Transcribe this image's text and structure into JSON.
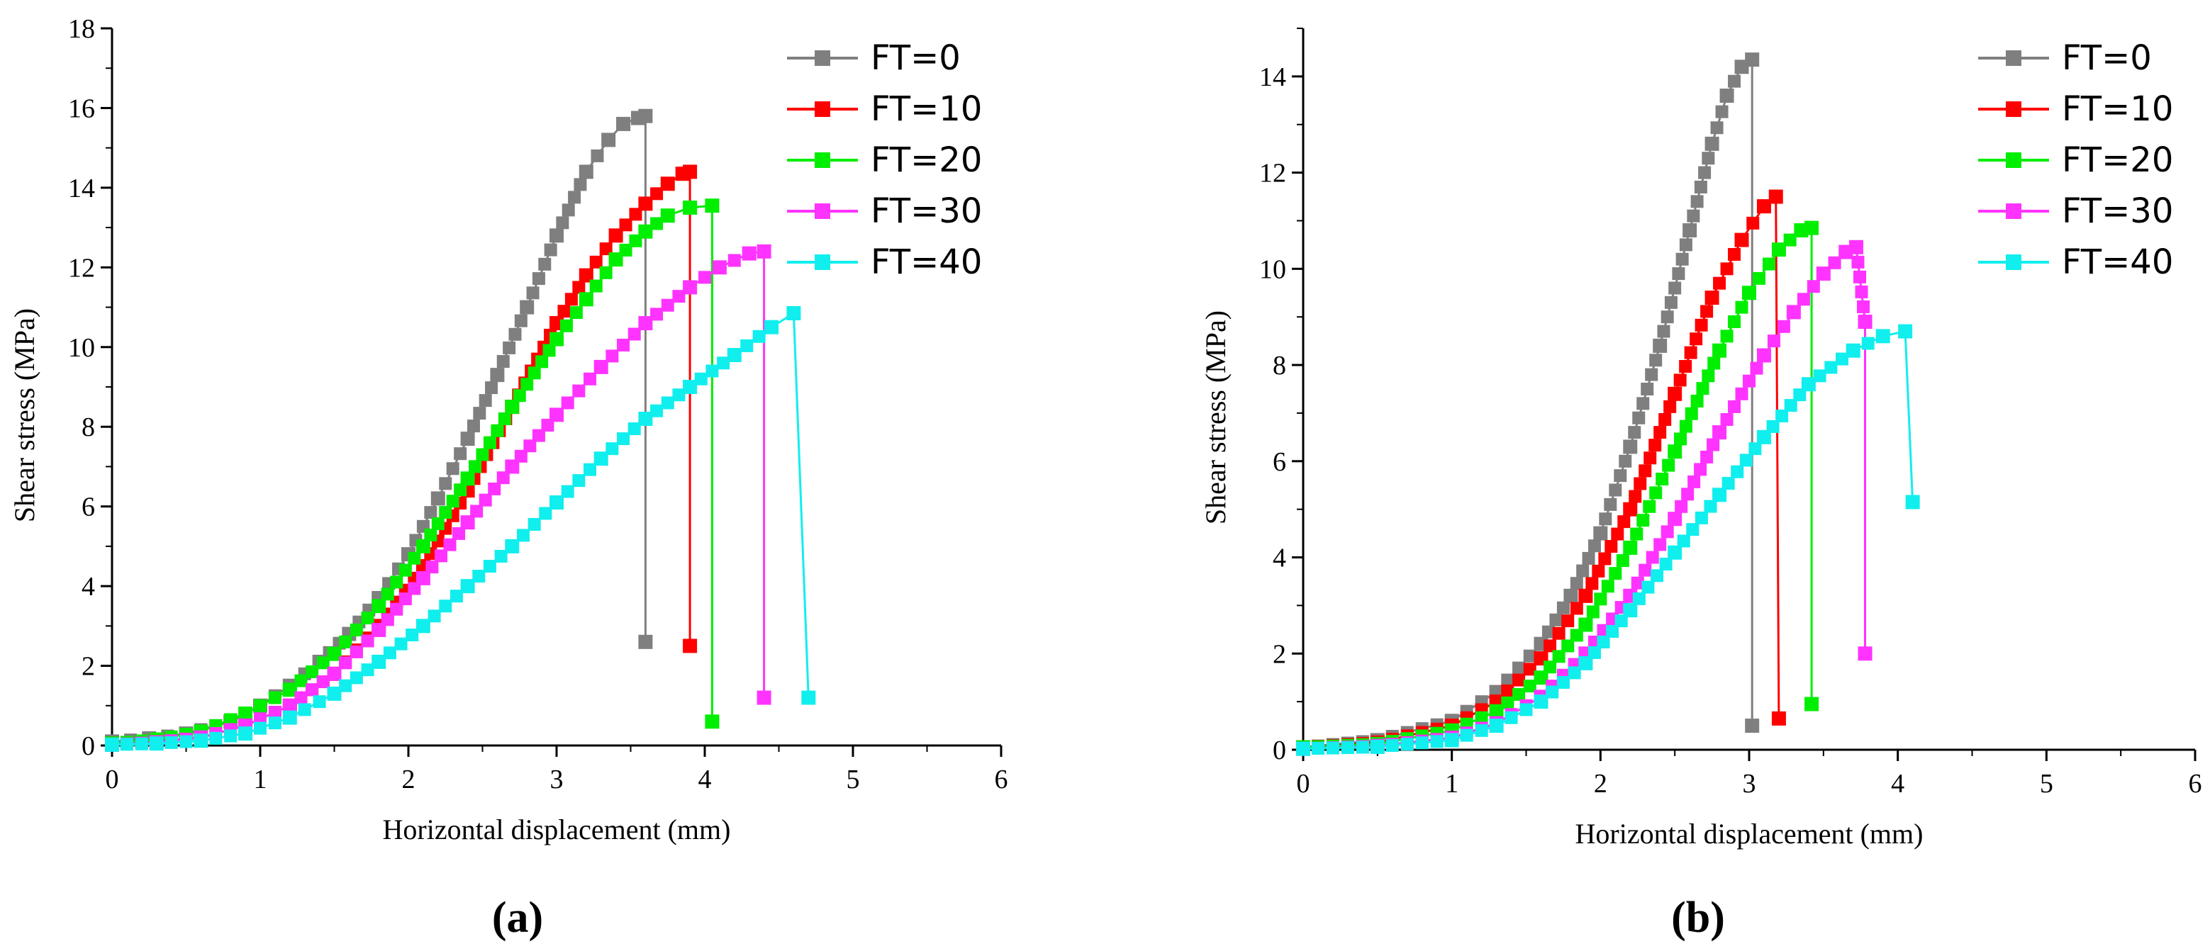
{
  "panels": [
    {
      "panel_label": "(a)",
      "chart_data": {
        "type": "line",
        "xlabel": "Horizontal displacement (mm)",
        "ylabel": "Shear stress (MPa)",
        "xlim": [
          0,
          6
        ],
        "ylim": [
          0,
          18
        ],
        "xticks": [
          0,
          1,
          2,
          3,
          4,
          5,
          6
        ],
        "yticks": [
          0,
          2,
          4,
          6,
          8,
          10,
          12,
          14,
          16,
          18
        ],
        "grid": false,
        "legend_position": "top-right",
        "series": [
          {
            "name": "FT=0",
            "color": "#7f7f7f",
            "x": [
              0,
              0.25,
              0.5,
              0.8,
              1.0,
              1.2,
              1.4,
              1.6,
              1.8,
              2.0,
              2.2,
              2.4,
              2.6,
              2.8,
              3.0,
              3.2,
              3.35,
              3.45,
              3.55,
              3.6,
              3.6
            ],
            "y": [
              0.1,
              0.18,
              0.3,
              0.6,
              1.0,
              1.5,
              2.1,
              2.8,
              3.7,
              4.8,
              6.2,
              7.7,
              9.3,
              11.0,
              12.8,
              14.4,
              15.2,
              15.6,
              15.75,
              15.8,
              2.6
            ]
          },
          {
            "name": "FT=10",
            "color": "#ff0000",
            "x": [
              0,
              0.3,
              0.6,
              0.9,
              1.2,
              1.5,
              1.8,
              2.1,
              2.4,
              2.7,
              3.0,
              3.2,
              3.4,
              3.6,
              3.75,
              3.85,
              3.9,
              3.9
            ],
            "y": [
              0.05,
              0.1,
              0.2,
              0.5,
              1.0,
              1.8,
              3.0,
              4.5,
              6.4,
              8.5,
              10.6,
              11.8,
              12.8,
              13.6,
              14.1,
              14.35,
              14.4,
              2.5
            ]
          },
          {
            "name": "FT=20",
            "color": "#00ee00",
            "x": [
              0,
              0.3,
              0.6,
              0.9,
              1.2,
              1.5,
              1.8,
              2.1,
              2.4,
              2.7,
              3.0,
              3.2,
              3.4,
              3.6,
              3.75,
              3.9,
              4.05,
              4.05
            ],
            "y": [
              0.05,
              0.15,
              0.35,
              0.8,
              1.4,
              2.3,
              3.5,
              5.0,
              6.7,
              8.5,
              10.2,
              11.2,
              12.2,
              12.9,
              13.3,
              13.5,
              13.55,
              0.6
            ]
          },
          {
            "name": "FT=30",
            "color": "#ff33ff",
            "x": [
              0,
              0.3,
              0.6,
              0.9,
              1.2,
              1.5,
              1.8,
              2.1,
              2.4,
              2.7,
              3.0,
              3.3,
              3.6,
              3.9,
              4.1,
              4.3,
              4.4,
              4.4
            ],
            "y": [
              0.02,
              0.08,
              0.2,
              0.5,
              1.0,
              1.8,
              2.9,
              4.2,
              5.6,
              7.0,
              8.3,
              9.5,
              10.6,
              11.5,
              12.0,
              12.35,
              12.4,
              1.2
            ]
          },
          {
            "name": "FT=40",
            "color": "#11eeee",
            "x": [
              0,
              0.3,
              0.6,
              0.9,
              1.2,
              1.5,
              1.8,
              2.1,
              2.4,
              2.7,
              3.0,
              3.3,
              3.6,
              3.9,
              4.2,
              4.45,
              4.6,
              4.7
            ],
            "y": [
              0.02,
              0.05,
              0.12,
              0.3,
              0.7,
              1.3,
              2.1,
              3.0,
              4.0,
              5.0,
              6.1,
              7.2,
              8.2,
              9.0,
              9.8,
              10.5,
              10.85,
              1.2
            ]
          }
        ]
      }
    },
    {
      "panel_label": "(b)",
      "chart_data": {
        "type": "line",
        "xlabel": "Horizontal displacement (mm)",
        "ylabel": "Shear stress (MPa)",
        "xlim": [
          0,
          6
        ],
        "ylim": [
          0,
          15
        ],
        "xticks": [
          0,
          1,
          2,
          3,
          4,
          5,
          6
        ],
        "yticks": [
          0,
          2,
          4,
          6,
          8,
          10,
          12,
          14
        ],
        "grid": false,
        "legend_position": "top-right",
        "series": [
          {
            "name": "FT=0",
            "color": "#7f7f7f",
            "x": [
              0,
              0.5,
              1.0,
              1.3,
              1.6,
              1.8,
              2.0,
              2.2,
              2.4,
              2.6,
              2.75,
              2.85,
              2.95,
              3.02,
              3.02
            ],
            "y": [
              0.05,
              0.2,
              0.6,
              1.2,
              2.2,
              3.2,
              4.5,
              6.3,
              8.4,
              10.8,
              12.6,
              13.6,
              14.2,
              14.35,
              0.5
            ]
          },
          {
            "name": "FT=10",
            "color": "#ff0000",
            "x": [
              0,
              0.5,
              1.0,
              1.3,
              1.6,
              1.9,
              2.2,
              2.5,
              2.75,
              2.95,
              3.1,
              3.18,
              3.2
            ],
            "y": [
              0.05,
              0.15,
              0.5,
              1.0,
              1.9,
              3.2,
              5.0,
              7.4,
              9.4,
              10.6,
              11.3,
              11.5,
              0.65
            ]
          },
          {
            "name": "FT=20",
            "color": "#00ee00",
            "x": [
              0,
              0.5,
              1.0,
              1.3,
              1.6,
              1.9,
              2.2,
              2.5,
              2.8,
              3.0,
              3.2,
              3.35,
              3.42,
              3.42
            ],
            "y": [
              0.05,
              0.12,
              0.4,
              0.8,
              1.5,
              2.6,
              4.2,
              6.2,
              8.3,
              9.5,
              10.4,
              10.8,
              10.85,
              0.95
            ]
          },
          {
            "name": "FT=30",
            "color": "#ff33ff",
            "x": [
              0,
              0.5,
              1.0,
              1.3,
              1.6,
              1.9,
              2.2,
              2.5,
              2.8,
              3.1,
              3.3,
              3.5,
              3.65,
              3.72,
              3.78,
              3.78
            ],
            "y": [
              0.02,
              0.08,
              0.25,
              0.55,
              1.1,
              2.0,
              3.2,
              4.8,
              6.6,
              8.2,
              9.1,
              9.9,
              10.35,
              10.45,
              8.9,
              2.0
            ]
          },
          {
            "name": "FT=40",
            "color": "#11eeee",
            "x": [
              0,
              0.5,
              1.0,
              1.3,
              1.6,
              1.9,
              2.2,
              2.5,
              2.8,
              3.1,
              3.4,
              3.7,
              3.9,
              4.05,
              4.1
            ],
            "y": [
              0.02,
              0.06,
              0.2,
              0.5,
              1.0,
              1.8,
              2.9,
              4.1,
              5.3,
              6.5,
              7.6,
              8.3,
              8.6,
              8.7,
              5.15
            ]
          }
        ]
      }
    }
  ]
}
